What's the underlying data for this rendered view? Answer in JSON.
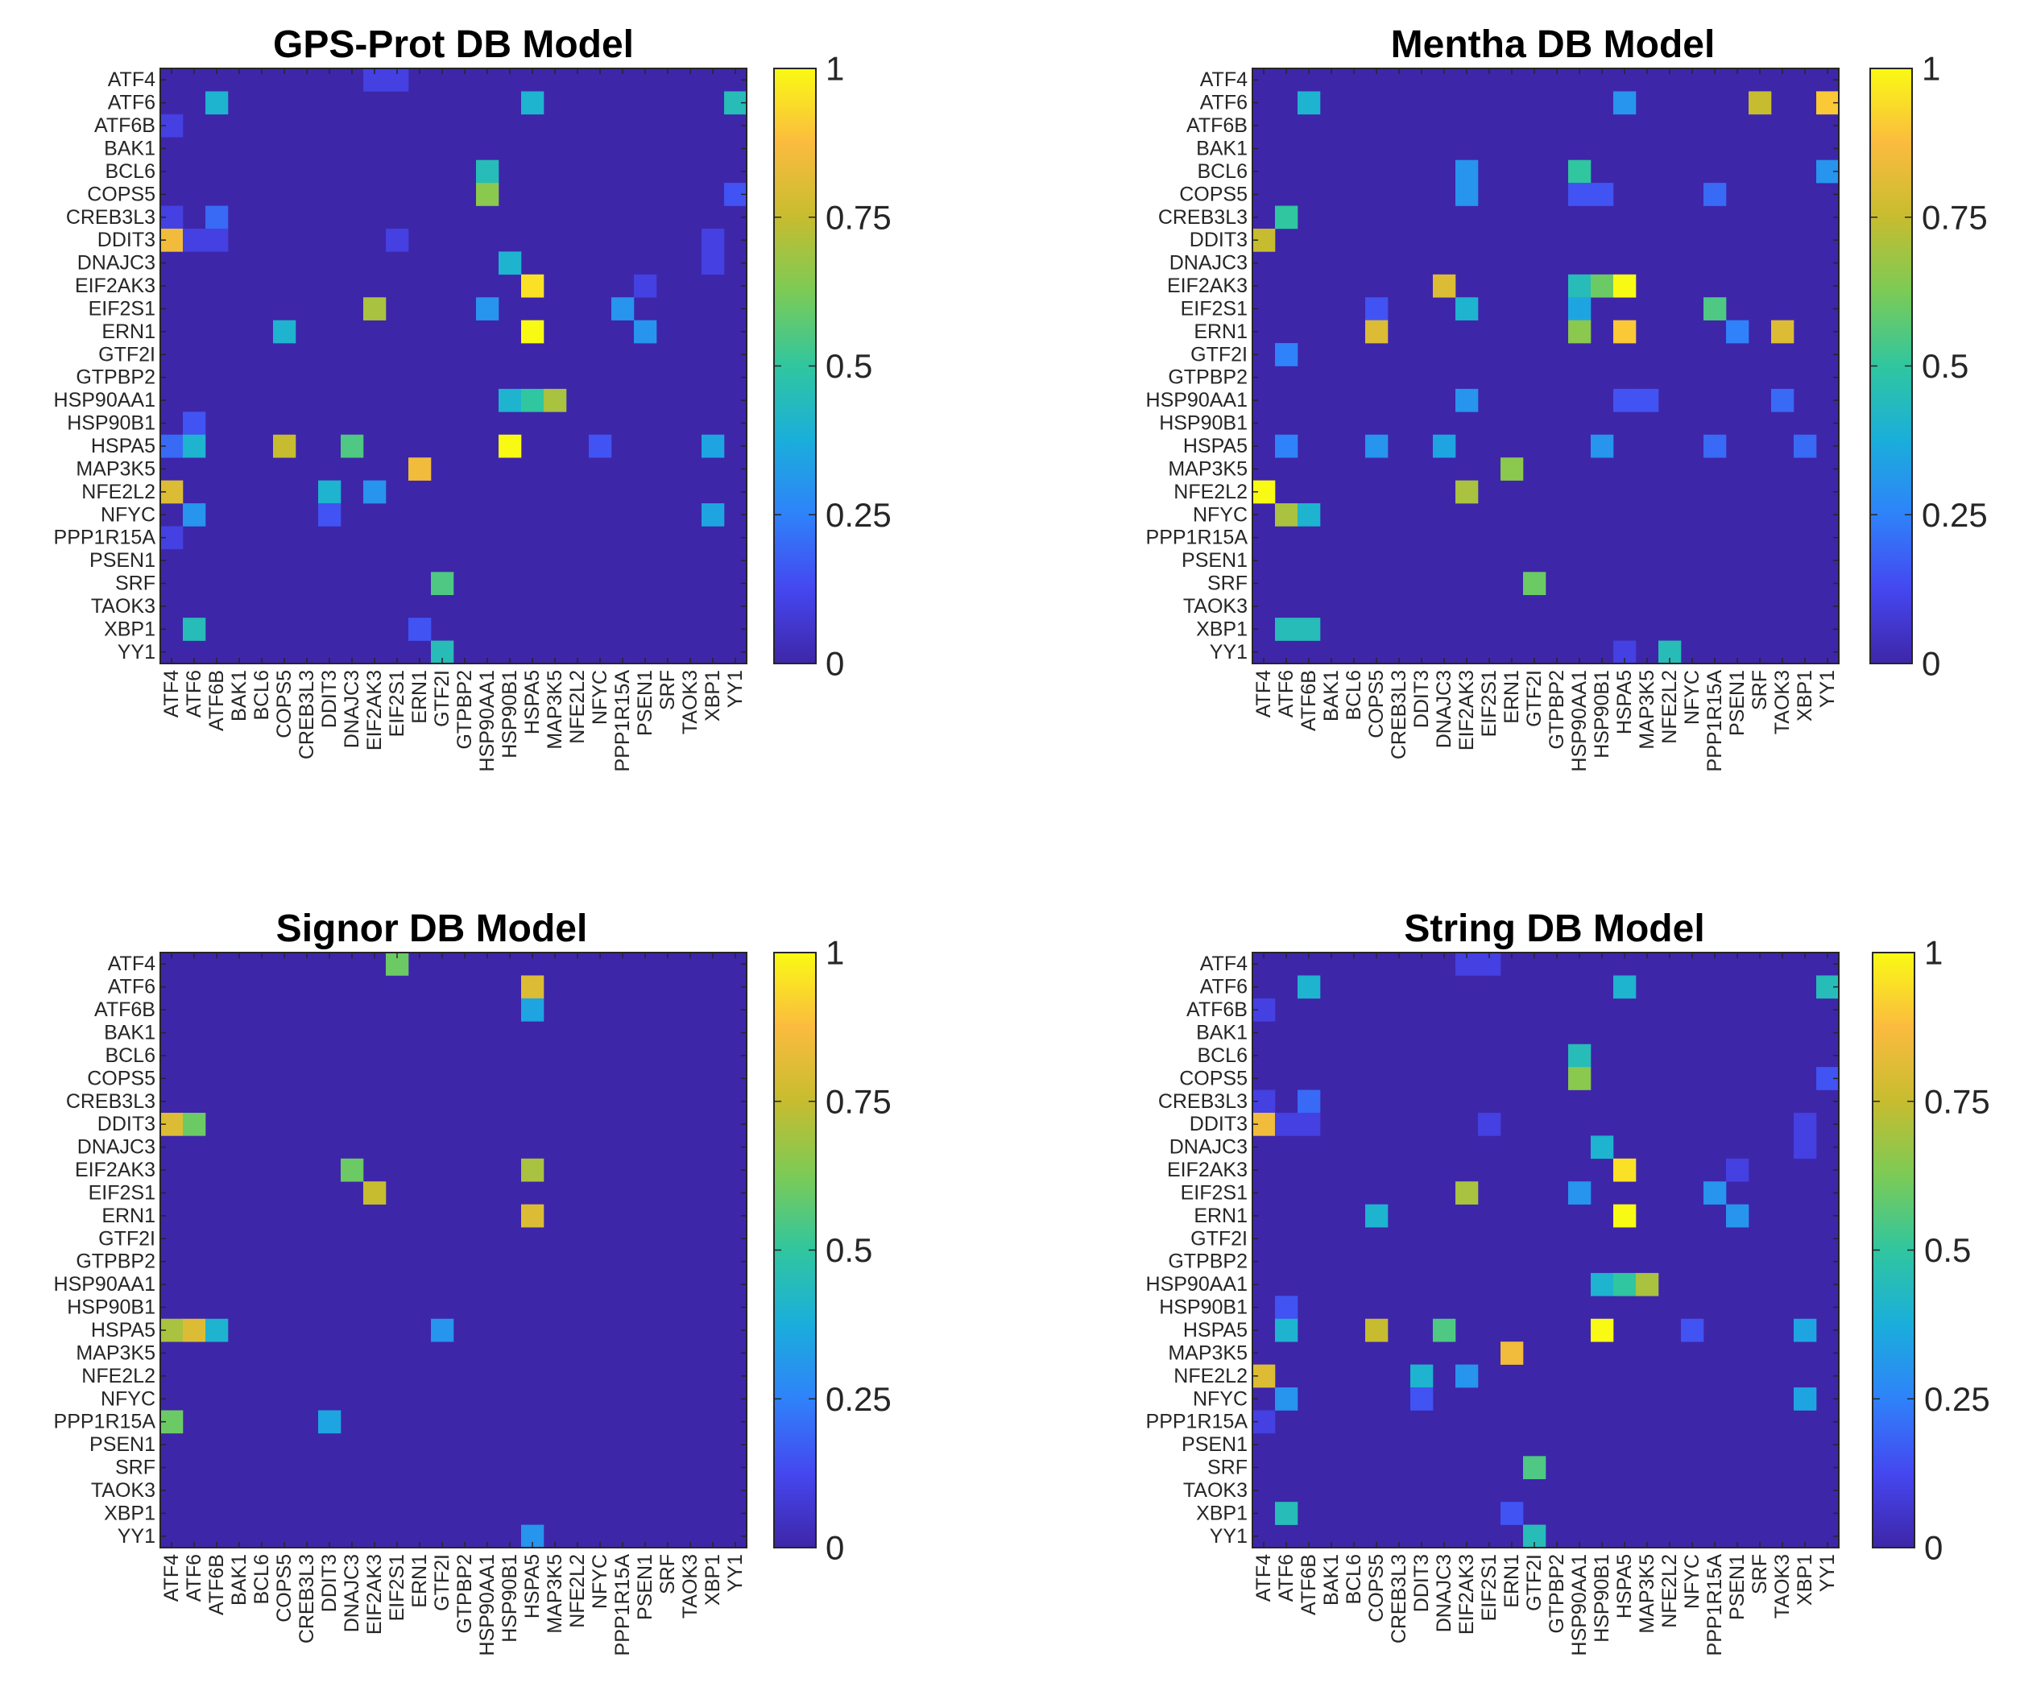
{
  "colors": {
    "c0": "#3e26a8",
    "c1": "#4547f0",
    "c2": "#2f82fa",
    "c3": "#1aaedb",
    "c4": "#30c69f",
    "c5": "#7bcb56",
    "c6": "#c7bc2f",
    "c7": "#fbbb3f",
    "c8": "#f9fa14"
  },
  "chart_data": [
    {
      "type": "heatmap",
      "title": "GPS-Prot DB Model",
      "colorbar": {
        "range": [
          0,
          1
        ],
        "ticks": [
          "0",
          "0.25",
          "0.5",
          "0.75",
          "1"
        ]
      },
      "rows": [
        "ATF4",
        "ATF6",
        "ATF6B",
        "BAK1",
        "BCL6",
        "COPS5",
        "CREB3L3",
        "DDIT3",
        "DNAJC3",
        "EIF2AK3",
        "EIF2S1",
        "ERN1",
        "GTF2I",
        "GTPBP2",
        "HSP90AA1",
        "HSP90B1",
        "HSPA5",
        "MAP3K5",
        "NFE2L2",
        "NFYC",
        "PPP1R15A",
        "PSEN1",
        "SRF",
        "TAOK3",
        "XBP1",
        "YY1"
      ],
      "cols": [
        "ATF4",
        "ATF6",
        "ATF6B",
        "BAK1",
        "BCL6",
        "COPS5",
        "CREB3L3",
        "DDIT3",
        "DNAJC3",
        "EIF2AK3",
        "EIF2S1",
        "ERN1",
        "GTF2I",
        "GTPBP2",
        "HSP90AA1",
        "HSP90B1",
        "HSPA5",
        "MAP3K5",
        "NFE2L2",
        "NFYC",
        "PPP1R15A",
        "PSEN1",
        "SRF",
        "TAOK3",
        "XBP1",
        "YY1"
      ],
      "cells": [
        {
          "r": "ATF4",
          "c": "EIF2AK3",
          "v": 0.1
        },
        {
          "r": "ATF4",
          "c": "EIF2S1",
          "v": 0.1
        },
        {
          "r": "ATF6",
          "c": "ATF6B",
          "v": 0.4
        },
        {
          "r": "ATF6",
          "c": "HSPA5",
          "v": 0.4
        },
        {
          "r": "ATF6",
          "c": "YY1",
          "v": 0.45
        },
        {
          "r": "ATF6B",
          "c": "ATF4",
          "v": 0.1
        },
        {
          "r": "BCL6",
          "c": "HSP90AA1",
          "v": 0.45
        },
        {
          "r": "COPS5",
          "c": "HSP90AA1",
          "v": 0.65
        },
        {
          "r": "COPS5",
          "c": "YY1",
          "v": 0.15
        },
        {
          "r": "CREB3L3",
          "c": "ATF4",
          "v": 0.1
        },
        {
          "r": "CREB3L3",
          "c": "ATF6B",
          "v": 0.2
        },
        {
          "r": "DDIT3",
          "c": "ATF4",
          "v": 0.85
        },
        {
          "r": "DDIT3",
          "c": "ATF6",
          "v": 0.1
        },
        {
          "r": "DDIT3",
          "c": "ATF6B",
          "v": 0.1
        },
        {
          "r": "DDIT3",
          "c": "EIF2S1",
          "v": 0.1
        },
        {
          "r": "DDIT3",
          "c": "XBP1",
          "v": 0.1
        },
        {
          "r": "DNAJC3",
          "c": "HSP90B1",
          "v": 0.4
        },
        {
          "r": "DNAJC3",
          "c": "XBP1",
          "v": 0.1
        },
        {
          "r": "EIF2AK3",
          "c": "HSPA5",
          "v": 0.95
        },
        {
          "r": "EIF2AK3",
          "c": "PSEN1",
          "v": 0.1
        },
        {
          "r": "EIF2S1",
          "c": "EIF2AK3",
          "v": 0.7
        },
        {
          "r": "EIF2S1",
          "c": "HSP90AA1",
          "v": 0.3
        },
        {
          "r": "EIF2S1",
          "c": "PPP1R15A",
          "v": 0.3
        },
        {
          "r": "ERN1",
          "c": "COPS5",
          "v": 0.4
        },
        {
          "r": "ERN1",
          "c": "HSPA5",
          "v": 1
        },
        {
          "r": "ERN1",
          "c": "PSEN1",
          "v": 0.3
        },
        {
          "r": "HSP90AA1",
          "c": "HSP90B1",
          "v": 0.4
        },
        {
          "r": "HSP90AA1",
          "c": "HSPA5",
          "v": 0.5
        },
        {
          "r": "HSP90AA1",
          "c": "MAP3K5",
          "v": 0.7
        },
        {
          "r": "HSP90B1",
          "c": "ATF6",
          "v": 0.15
        },
        {
          "r": "HSPA5",
          "c": "ATF4",
          "v": 0.2
        },
        {
          "r": "HSPA5",
          "c": "ATF6",
          "v": 0.4
        },
        {
          "r": "HSPA5",
          "c": "COPS5",
          "v": 0.75
        },
        {
          "r": "HSPA5",
          "c": "DNAJC3",
          "v": 0.55
        },
        {
          "r": "HSPA5",
          "c": "HSP90B1",
          "v": 1
        },
        {
          "r": "HSPA5",
          "c": "NFYC",
          "v": 0.15
        },
        {
          "r": "HSPA5",
          "c": "XBP1",
          "v": 0.35
        },
        {
          "r": "MAP3K5",
          "c": "ERN1",
          "v": 0.85
        },
        {
          "r": "NFE2L2",
          "c": "ATF4",
          "v": 0.8
        },
        {
          "r": "NFE2L2",
          "c": "DDIT3",
          "v": 0.4
        },
        {
          "r": "NFE2L2",
          "c": "EIF2AK3",
          "v": 0.3
        },
        {
          "r": "NFYC",
          "c": "ATF6",
          "v": 0.3
        },
        {
          "r": "NFYC",
          "c": "DDIT3",
          "v": 0.15
        },
        {
          "r": "NFYC",
          "c": "XBP1",
          "v": 0.35
        },
        {
          "r": "PPP1R15A",
          "c": "ATF4",
          "v": 0.1
        },
        {
          "r": "SRF",
          "c": "GTF2I",
          "v": 0.55
        },
        {
          "r": "XBP1",
          "c": "ATF6",
          "v": 0.45
        },
        {
          "r": "XBP1",
          "c": "ERN1",
          "v": 0.15
        },
        {
          "r": "YY1",
          "c": "GTF2I",
          "v": 0.45
        }
      ]
    },
    {
      "type": "heatmap",
      "title": "Mentha DB Model",
      "colorbar": {
        "range": [
          0,
          1
        ],
        "ticks": [
          "0",
          "0.25",
          "0.5",
          "0.75",
          "1"
        ]
      },
      "rows": [
        "ATF4",
        "ATF6",
        "ATF6B",
        "BAK1",
        "BCL6",
        "COPS5",
        "CREB3L3",
        "DDIT3",
        "DNAJC3",
        "EIF2AK3",
        "EIF2S1",
        "ERN1",
        "GTF2I",
        "GTPBP2",
        "HSP90AA1",
        "HSP90B1",
        "HSPA5",
        "MAP3K5",
        "NFE2L2",
        "NFYC",
        "PPP1R15A",
        "PSEN1",
        "SRF",
        "TAOK3",
        "XBP1",
        "YY1"
      ],
      "cols": [
        "ATF4",
        "ATF6",
        "ATF6B",
        "BAK1",
        "BCL6",
        "COPS5",
        "CREB3L3",
        "DDIT3",
        "DNAJC3",
        "EIF2AK3",
        "EIF2S1",
        "ERN1",
        "GTF2I",
        "GTPBP2",
        "HSP90AA1",
        "HSP90B1",
        "HSPA5",
        "MAP3K5",
        "NFE2L2",
        "NFYC",
        "PPP1R15A",
        "PSEN1",
        "SRF",
        "TAOK3",
        "XBP1",
        "YY1"
      ],
      "cells": [
        {
          "r": "ATF6",
          "c": "ATF6B",
          "v": 0.4
        },
        {
          "r": "ATF6",
          "c": "HSPA5",
          "v": 0.3
        },
        {
          "r": "ATF6",
          "c": "SRF",
          "v": 0.75
        },
        {
          "r": "ATF6",
          "c": "YY1",
          "v": 0.9
        },
        {
          "r": "BCL6",
          "c": "YY1",
          "v": 0.3
        },
        {
          "r": "BCL6",
          "c": "EIF2AK3",
          "v": 0.3
        },
        {
          "r": "BCL6",
          "c": "HSP90AA1",
          "v": 0.5
        },
        {
          "r": "COPS5",
          "c": "EIF2AK3",
          "v": 0.3
        },
        {
          "r": "COPS5",
          "c": "HSP90AA1",
          "v": 0.15
        },
        {
          "r": "COPS5",
          "c": "HSP90B1",
          "v": 0.15
        },
        {
          "r": "COPS5",
          "c": "PPP1R15A",
          "v": 0.2
        },
        {
          "r": "CREB3L3",
          "c": "ATF6",
          "v": 0.5
        },
        {
          "r": "DDIT3",
          "c": "ATF4",
          "v": 0.75
        },
        {
          "r": "EIF2AK3",
          "c": "DNAJC3",
          "v": 0.8
        },
        {
          "r": "EIF2AK3",
          "c": "HSP90AA1",
          "v": 0.45
        },
        {
          "r": "EIF2AK3",
          "c": "HSP90B1",
          "v": 0.6
        },
        {
          "r": "EIF2AK3",
          "c": "HSPA5",
          "v": 1
        },
        {
          "r": "EIF2S1",
          "c": "COPS5",
          "v": 0.15
        },
        {
          "r": "EIF2S1",
          "c": "EIF2AK3",
          "v": 0.4
        },
        {
          "r": "EIF2S1",
          "c": "HSP90AA1",
          "v": 0.35
        },
        {
          "r": "EIF2S1",
          "c": "PPP1R15A",
          "v": 0.55
        },
        {
          "r": "ERN1",
          "c": "COPS5",
          "v": 0.8
        },
        {
          "r": "ERN1",
          "c": "HSP90AA1",
          "v": 0.65
        },
        {
          "r": "ERN1",
          "c": "HSPA5",
          "v": 0.9
        },
        {
          "r": "ERN1",
          "c": "PSEN1",
          "v": 0.25
        },
        {
          "r": "ERN1",
          "c": "TAOK3",
          "v": 0.8
        },
        {
          "r": "GTF2I",
          "c": "ATF6",
          "v": 0.25
        },
        {
          "r": "HSP90AA1",
          "c": "EIF2AK3",
          "v": 0.3
        },
        {
          "r": "HSP90AA1",
          "c": "HSPA5",
          "v": 0.15
        },
        {
          "r": "HSP90AA1",
          "c": "MAP3K5",
          "v": 0.15
        },
        {
          "r": "HSP90AA1",
          "c": "TAOK3",
          "v": 0.2
        },
        {
          "r": "HSPA5",
          "c": "ATF6",
          "v": 0.25
        },
        {
          "r": "HSPA5",
          "c": "COPS5",
          "v": 0.3
        },
        {
          "r": "HSPA5",
          "c": "DNAJC3",
          "v": 0.35
        },
        {
          "r": "HSPA5",
          "c": "HSP90B1",
          "v": 0.3
        },
        {
          "r": "HSPA5",
          "c": "PPP1R15A",
          "v": 0.2
        },
        {
          "r": "HSPA5",
          "c": "XBP1",
          "v": 0.2
        },
        {
          "r": "MAP3K5",
          "c": "ERN1",
          "v": 0.65
        },
        {
          "r": "NFE2L2",
          "c": "ATF4",
          "v": 1
        },
        {
          "r": "NFE2L2",
          "c": "EIF2AK3",
          "v": 0.7
        },
        {
          "r": "NFYC",
          "c": "ATF6",
          "v": 0.7
        },
        {
          "r": "NFYC",
          "c": "ATF6B",
          "v": 0.4
        },
        {
          "r": "SRF",
          "c": "GTF2I",
          "v": 0.6
        },
        {
          "r": "XBP1",
          "c": "ATF6",
          "v": 0.45
        },
        {
          "r": "XBP1",
          "c": "ATF6B",
          "v": 0.45
        },
        {
          "r": "YY1",
          "c": "HSPA5",
          "v": 0.1
        },
        {
          "r": "YY1",
          "c": "NFE2L2",
          "v": 0.45
        }
      ]
    },
    {
      "type": "heatmap",
      "title": "Signor DB Model",
      "colorbar": {
        "range": [
          0,
          1
        ],
        "ticks": [
          "0",
          "0.25",
          "0.5",
          "0.75",
          "1"
        ]
      },
      "rows": [
        "ATF4",
        "ATF6",
        "ATF6B",
        "BAK1",
        "BCL6",
        "COPS5",
        "CREB3L3",
        "DDIT3",
        "DNAJC3",
        "EIF2AK3",
        "EIF2S1",
        "ERN1",
        "GTF2I",
        "GTPBP2",
        "HSP90AA1",
        "HSP90B1",
        "HSPA5",
        "MAP3K5",
        "NFE2L2",
        "NFYC",
        "PPP1R15A",
        "PSEN1",
        "SRF",
        "TAOK3",
        "XBP1",
        "YY1"
      ],
      "cols": [
        "ATF4",
        "ATF6",
        "ATF6B",
        "BAK1",
        "BCL6",
        "COPS5",
        "CREB3L3",
        "DDIT3",
        "DNAJC3",
        "EIF2AK3",
        "EIF2S1",
        "ERN1",
        "GTF2I",
        "GTPBP2",
        "HSP90AA1",
        "HSP90B1",
        "HSPA5",
        "MAP3K5",
        "NFE2L2",
        "NFYC",
        "PPP1R15A",
        "PSEN1",
        "SRF",
        "TAOK3",
        "XBP1",
        "YY1"
      ],
      "cells": [
        {
          "r": "ATF4",
          "c": "EIF2S1",
          "v": 0.6
        },
        {
          "r": "ATF6",
          "c": "HSPA5",
          "v": 0.8
        },
        {
          "r": "ATF6B",
          "c": "HSPA5",
          "v": 0.35
        },
        {
          "r": "DDIT3",
          "c": "ATF4",
          "v": 0.8
        },
        {
          "r": "DDIT3",
          "c": "ATF6",
          "v": 0.6
        },
        {
          "r": "EIF2AK3",
          "c": "DNAJC3",
          "v": 0.6
        },
        {
          "r": "EIF2AK3",
          "c": "HSPA5",
          "v": 0.7
        },
        {
          "r": "EIF2S1",
          "c": "EIF2AK3",
          "v": 0.75
        },
        {
          "r": "ERN1",
          "c": "HSPA5",
          "v": 0.8
        },
        {
          "r": "HSPA5",
          "c": "ATF4",
          "v": 0.7
        },
        {
          "r": "HSPA5",
          "c": "ATF6",
          "v": 0.8
        },
        {
          "r": "HSPA5",
          "c": "ATF6B",
          "v": 0.4
        },
        {
          "r": "HSPA5",
          "c": "GTF2I",
          "v": 0.3
        },
        {
          "r": "PPP1R15A",
          "c": "ATF4",
          "v": 0.6
        },
        {
          "r": "PPP1R15A",
          "c": "DDIT3",
          "v": 0.35
        },
        {
          "r": "YY1",
          "c": "HSPA5",
          "v": 0.3
        }
      ]
    },
    {
      "type": "heatmap",
      "title": "String DB Model",
      "colorbar": {
        "range": [
          0,
          1
        ],
        "ticks": [
          "0",
          "0.25",
          "0.5",
          "0.75",
          "1"
        ]
      },
      "rows": [
        "ATF4",
        "ATF6",
        "ATF6B",
        "BAK1",
        "BCL6",
        "COPS5",
        "CREB3L3",
        "DDIT3",
        "DNAJC3",
        "EIF2AK3",
        "EIF2S1",
        "ERN1",
        "GTF2I",
        "GTPBP2",
        "HSP90AA1",
        "HSP90B1",
        "HSPA5",
        "MAP3K5",
        "NFE2L2",
        "NFYC",
        "PPP1R15A",
        "PSEN1",
        "SRF",
        "TAOK3",
        "XBP1",
        "YY1"
      ],
      "cols": [
        "ATF4",
        "ATF6",
        "ATF6B",
        "BAK1",
        "BCL6",
        "COPS5",
        "CREB3L3",
        "DDIT3",
        "DNAJC3",
        "EIF2AK3",
        "EIF2S1",
        "ERN1",
        "GTF2I",
        "GTPBP2",
        "HSP90AA1",
        "HSP90B1",
        "HSPA5",
        "MAP3K5",
        "NFE2L2",
        "NFYC",
        "PPP1R15A",
        "PSEN1",
        "SRF",
        "TAOK3",
        "XBP1",
        "YY1"
      ],
      "cells": [
        {
          "r": "ATF4",
          "c": "EIF2AK3",
          "v": 0.1
        },
        {
          "r": "ATF4",
          "c": "EIF2S1",
          "v": 0.1
        },
        {
          "r": "ATF6",
          "c": "ATF6B",
          "v": 0.4
        },
        {
          "r": "ATF6",
          "c": "HSPA5",
          "v": 0.4
        },
        {
          "r": "ATF6",
          "c": "YY1",
          "v": 0.45
        },
        {
          "r": "ATF6B",
          "c": "ATF4",
          "v": 0.1
        },
        {
          "r": "BCL6",
          "c": "HSP90AA1",
          "v": 0.45
        },
        {
          "r": "COPS5",
          "c": "HSP90AA1",
          "v": 0.65
        },
        {
          "r": "COPS5",
          "c": "YY1",
          "v": 0.15
        },
        {
          "r": "CREB3L3",
          "c": "ATF4",
          "v": 0.1
        },
        {
          "r": "CREB3L3",
          "c": "ATF6B",
          "v": 0.2
        },
        {
          "r": "DDIT3",
          "c": "ATF4",
          "v": 0.85
        },
        {
          "r": "DDIT3",
          "c": "ATF6",
          "v": 0.1
        },
        {
          "r": "DDIT3",
          "c": "ATF6B",
          "v": 0.1
        },
        {
          "r": "DDIT3",
          "c": "EIF2S1",
          "v": 0.1
        },
        {
          "r": "DDIT3",
          "c": "XBP1",
          "v": 0.1
        },
        {
          "r": "DNAJC3",
          "c": "HSP90B1",
          "v": 0.4
        },
        {
          "r": "DNAJC3",
          "c": "XBP1",
          "v": 0.1
        },
        {
          "r": "EIF2AK3",
          "c": "HSPA5",
          "v": 0.95
        },
        {
          "r": "EIF2AK3",
          "c": "PSEN1",
          "v": 0.1
        },
        {
          "r": "EIF2S1",
          "c": "EIF2AK3",
          "v": 0.7
        },
        {
          "r": "EIF2S1",
          "c": "HSP90AA1",
          "v": 0.3
        },
        {
          "r": "EIF2S1",
          "c": "PPP1R15A",
          "v": 0.3
        },
        {
          "r": "ERN1",
          "c": "COPS5",
          "v": 0.4
        },
        {
          "r": "ERN1",
          "c": "HSPA5",
          "v": 1
        },
        {
          "r": "ERN1",
          "c": "PSEN1",
          "v": 0.3
        },
        {
          "r": "HSP90AA1",
          "c": "HSP90B1",
          "v": 0.4
        },
        {
          "r": "HSP90AA1",
          "c": "HSPA5",
          "v": 0.5
        },
        {
          "r": "HSP90AA1",
          "c": "MAP3K5",
          "v": 0.7
        },
        {
          "r": "HSP90B1",
          "c": "ATF6",
          "v": 0.15
        },
        {
          "r": "HSPA5",
          "c": "ATF6",
          "v": 0.4
        },
        {
          "r": "HSPA5",
          "c": "COPS5",
          "v": 0.75
        },
        {
          "r": "HSPA5",
          "c": "DNAJC3",
          "v": 0.55
        },
        {
          "r": "HSPA5",
          "c": "HSP90B1",
          "v": 1
        },
        {
          "r": "HSPA5",
          "c": "NFYC",
          "v": 0.15
        },
        {
          "r": "HSPA5",
          "c": "XBP1",
          "v": 0.35
        },
        {
          "r": "MAP3K5",
          "c": "ERN1",
          "v": 0.85
        },
        {
          "r": "NFE2L2",
          "c": "ATF4",
          "v": 0.8
        },
        {
          "r": "NFE2L2",
          "c": "DDIT3",
          "v": 0.4
        },
        {
          "r": "NFE2L2",
          "c": "EIF2AK3",
          "v": 0.3
        },
        {
          "r": "NFYC",
          "c": "ATF6",
          "v": 0.3
        },
        {
          "r": "NFYC",
          "c": "DDIT3",
          "v": 0.15
        },
        {
          "r": "NFYC",
          "c": "XBP1",
          "v": 0.35
        },
        {
          "r": "PPP1R15A",
          "c": "ATF4",
          "v": 0.1
        },
        {
          "r": "SRF",
          "c": "GTF2I",
          "v": 0.55
        },
        {
          "r": "XBP1",
          "c": "ATF6",
          "v": 0.45
        },
        {
          "r": "XBP1",
          "c": "ERN1",
          "v": 0.15
        },
        {
          "r": "YY1",
          "c": "GTF2I",
          "v": 0.45
        }
      ]
    }
  ]
}
